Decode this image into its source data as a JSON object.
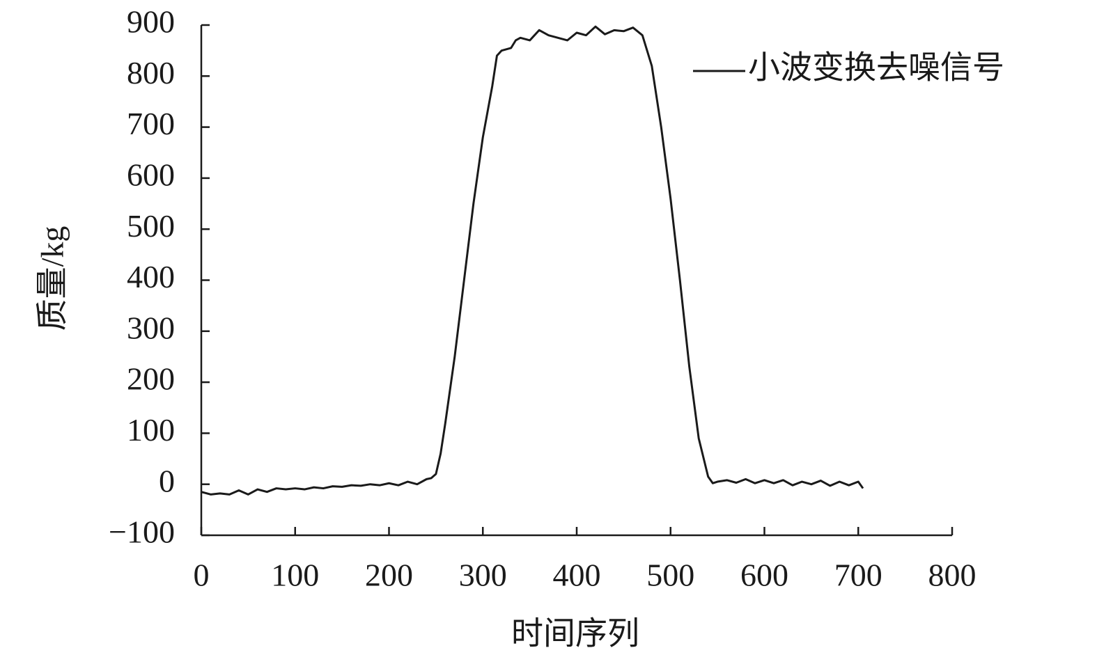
{
  "chart_data": {
    "type": "line",
    "xlabel": "时间序列",
    "ylabel": "质量/kg",
    "x": [
      0,
      10,
      20,
      30,
      40,
      50,
      60,
      70,
      80,
      90,
      100,
      110,
      120,
      130,
      140,
      150,
      160,
      170,
      180,
      190,
      200,
      210,
      220,
      230,
      240,
      245,
      250,
      255,
      260,
      270,
      280,
      290,
      300,
      310,
      315,
      320,
      330,
      335,
      340,
      350,
      360,
      370,
      380,
      390,
      400,
      410,
      420,
      430,
      440,
      450,
      460,
      470,
      480,
      490,
      500,
      510,
      520,
      530,
      540,
      545,
      550,
      560,
      570,
      580,
      590,
      600,
      610,
      620,
      630,
      640,
      650,
      660,
      670,
      680,
      690,
      700,
      705
    ],
    "series": [
      {
        "name": "小波变换去噪信号",
        "color": "#1a1a1a",
        "values": [
          -15,
          -20,
          -18,
          -20,
          -12,
          -20,
          -10,
          -15,
          -8,
          -10,
          -8,
          -10,
          -6,
          -8,
          -4,
          -5,
          -2,
          -3,
          0,
          -2,
          2,
          -2,
          5,
          0,
          10,
          12,
          20,
          60,
          120,
          250,
          400,
          550,
          680,
          780,
          840,
          850,
          855,
          870,
          875,
          870,
          890,
          880,
          875,
          870,
          885,
          880,
          897,
          882,
          890,
          888,
          895,
          880,
          820,
          700,
          560,
          400,
          230,
          90,
          15,
          2,
          5,
          8,
          3,
          10,
          2,
          8,
          2,
          8,
          -2,
          5,
          0,
          7,
          -3,
          5,
          -2,
          5,
          -8
        ]
      }
    ],
    "xlim": [
      0,
      800
    ],
    "xticks": [
      0,
      100,
      200,
      300,
      400,
      500,
      600,
      700,
      800
    ],
    "ylim": [
      -100,
      900
    ],
    "yticks": [
      {
        "value": -100,
        "label": "−100"
      },
      0,
      100,
      200,
      300,
      400,
      500,
      600,
      700,
      800,
      900
    ]
  }
}
